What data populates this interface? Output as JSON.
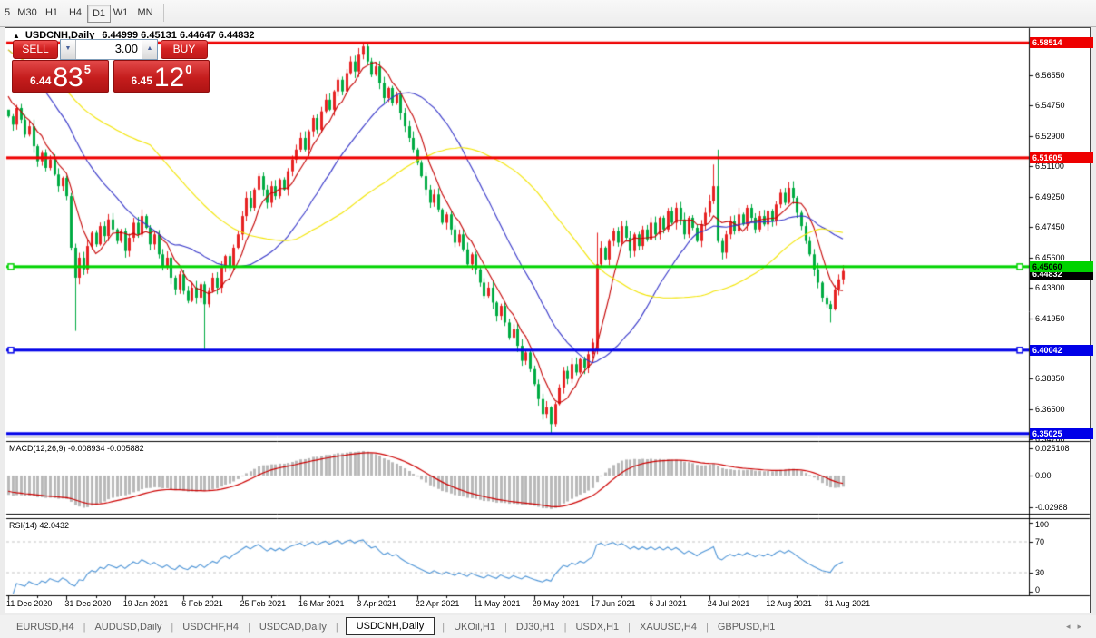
{
  "toolbar": {
    "timeframes": [
      "5",
      "M30",
      "H1",
      "H4",
      "D1",
      "W1",
      "MN"
    ],
    "active": "D1"
  },
  "chart_header": {
    "collapse_arrow": "▲",
    "title": "USDCNH,Daily",
    "ohlc": "6.44999 6.45131 6.44647 6.44832"
  },
  "trade_panel": {
    "sell_label": "SELL",
    "buy_label": "BUY",
    "volume_value": "3.00",
    "spinner_down": "▼",
    "spinner_up": "▲",
    "bid": {
      "prefix": "6.44",
      "big": "83",
      "sup": "5"
    },
    "ask": {
      "prefix": "6.45",
      "big": "12",
      "sup": "0"
    }
  },
  "price_axis": {
    "ticks": [
      "6.56550",
      "6.54750",
      "6.52900",
      "6.51100",
      "6.49250",
      "6.47450",
      "6.45600",
      "6.43800",
      "6.41950",
      "6.38350",
      "6.36500",
      "6.34700"
    ],
    "current_price": "6.44832"
  },
  "levels": [
    {
      "label": "6.58514",
      "value": 6.58514,
      "color": "#ee0000",
      "text": "#ffffff",
      "marker": false
    },
    {
      "label": "6.51605",
      "value": 6.51605,
      "color": "#ee0000",
      "text": "#ffffff",
      "marker": false
    },
    {
      "label": "6.45060",
      "value": 6.4506,
      "color": "#00d300",
      "text": "#000000",
      "marker": true
    },
    {
      "label": "6.40042",
      "value": 6.40042,
      "color": "#0000e8",
      "text": "#ffffff",
      "marker": true
    },
    {
      "label": "6.35025",
      "value": 6.35025,
      "color": "#0000e8",
      "text": "#ffffff",
      "marker": false
    }
  ],
  "macd_pane": {
    "label": "MACD(12,26,9) -0.008934 -0.005882",
    "axis": [
      {
        "text": "0.025108",
        "value": 0.025108
      },
      {
        "text": "0.00",
        "value": 0
      },
      {
        "text": "-0.02988",
        "value": -0.02988
      }
    ]
  },
  "rsi_pane": {
    "label": "RSI(14) 42.0432",
    "axis": [
      {
        "text": "100",
        "value": 100
      },
      {
        "text": "70",
        "value": 70
      },
      {
        "text": "30",
        "value": 30
      },
      {
        "text": "0",
        "value": 0
      }
    ],
    "dashed_levels": [
      70,
      30
    ]
  },
  "date_axis": [
    "11 Dec 2020",
    "31 Dec 2020",
    "19 Jan 2021",
    "6 Feb 2021",
    "25 Feb 2021",
    "16 Mar 2021",
    "3 Apr 2021",
    "22 Apr 2021",
    "11 May 2021",
    "29 May 2021",
    "17 Jun 2021",
    "6 Jul 2021",
    "24 Jul 2021",
    "12 Aug 2021",
    "31 Aug 2021"
  ],
  "tabs": {
    "items": [
      "EURUSD,H4",
      "AUDUSD,Daily",
      "USDCHF,H4",
      "USDCAD,Daily",
      "USDCNH,Daily",
      "UKOil,H1",
      "DJ30,H1",
      "USDX,H1",
      "XAUUSD,H4",
      "GBPUSD,H1"
    ],
    "active": "USDCNH,Daily",
    "scroll_left": "◂",
    "scroll_right": "▸"
  },
  "chart_data": {
    "type": "candlestick",
    "symbol": "USDCNH",
    "timeframe": "Daily",
    "up_color": "#e62222",
    "down_color": "#00ab42",
    "ma_lines": [
      {
        "period": 7,
        "color": "#c40000"
      },
      {
        "period": 25,
        "color": "#3434c8"
      },
      {
        "period": 55,
        "color": "#f2e400"
      }
    ],
    "macd_colors": {
      "histogram": "#b9b9b9",
      "signal": "#cc0000"
    },
    "rsi_color": "#4d94d6",
    "price_range": [
      6.3485,
      6.594
    ],
    "macd_range": [
      -0.02988,
      0.025108
    ],
    "rsi_range": [
      0,
      100
    ],
    "closes": [
      6.541,
      6.536,
      6.546,
      6.539,
      6.53,
      6.535,
      6.523,
      6.514,
      6.519,
      6.51,
      6.515,
      6.506,
      6.499,
      6.504,
      6.493,
      6.462,
      6.444,
      6.456,
      6.449,
      6.463,
      6.471,
      6.464,
      6.475,
      6.469,
      6.479,
      6.473,
      6.466,
      6.472,
      6.46,
      6.468,
      6.477,
      6.47,
      6.481,
      6.474,
      6.464,
      6.47,
      6.458,
      6.45,
      6.456,
      6.444,
      6.437,
      6.446,
      6.436,
      6.43,
      6.438,
      6.432,
      6.44,
      6.428,
      6.436,
      6.444,
      6.438,
      6.45,
      6.457,
      6.45,
      6.462,
      6.47,
      6.481,
      6.492,
      6.486,
      6.497,
      6.505,
      6.497,
      6.489,
      6.499,
      6.493,
      6.503,
      6.497,
      6.508,
      6.515,
      6.521,
      6.528,
      6.521,
      6.532,
      6.54,
      6.533,
      6.544,
      6.551,
      6.545,
      6.556,
      6.563,
      6.556,
      6.567,
      6.574,
      6.568,
      6.578,
      6.583,
      6.574,
      6.566,
      6.571,
      6.561,
      6.552,
      6.558,
      6.549,
      6.554,
      6.543,
      6.535,
      6.528,
      6.521,
      6.513,
      6.505,
      6.497,
      6.489,
      6.494,
      6.485,
      6.477,
      6.482,
      6.473,
      6.465,
      6.47,
      6.461,
      6.452,
      6.458,
      6.449,
      6.441,
      6.433,
      6.438,
      6.429,
      6.421,
      6.427,
      6.417,
      6.408,
      6.413,
      6.403,
      6.394,
      6.399,
      6.389,
      6.38,
      6.371,
      6.362,
      6.366,
      6.356,
      6.368,
      6.378,
      6.388,
      6.383,
      6.392,
      6.387,
      6.395,
      6.39,
      6.398,
      6.405,
      6.452,
      6.462,
      6.455,
      6.466,
      6.472,
      6.465,
      6.475,
      6.468,
      6.46,
      6.47,
      6.463,
      6.473,
      6.467,
      6.477,
      6.47,
      6.48,
      6.473,
      6.484,
      6.477,
      6.486,
      6.479,
      6.47,
      6.48,
      6.474,
      6.466,
      6.476,
      6.483,
      6.49,
      6.499,
      6.466,
      6.459,
      6.47,
      6.478,
      6.472,
      6.482,
      6.476,
      6.486,
      6.48,
      6.473,
      6.481,
      6.476,
      6.484,
      6.478,
      6.488,
      6.495,
      6.489,
      6.498,
      6.492,
      6.483,
      6.475,
      6.466,
      6.458,
      6.449,
      6.441,
      6.432,
      6.428,
      6.425,
      6.437,
      6.443,
      6.448
    ],
    "overrides": {
      "0": {
        "o": 6.545
      },
      "16": {
        "l": 6.412
      },
      "47": {
        "l": 6.401
      },
      "85": {
        "h": 6.5852
      },
      "130": {
        "l": 6.3505
      },
      "141": {
        "o": 6.401,
        "h": 6.471,
        "l": 6.398
      },
      "169": {
        "h": 6.512
      },
      "170": {
        "h": 6.521
      },
      "197": {
        "l": 6.417
      }
    }
  }
}
